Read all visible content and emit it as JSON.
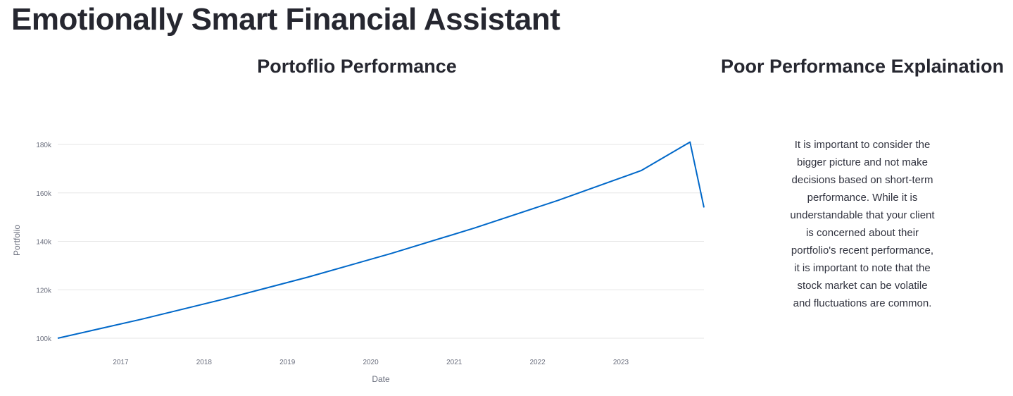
{
  "header": {
    "title": "Emotionally Smart Financial Assistant"
  },
  "chart_panel": {
    "title": "Portoflio Performance"
  },
  "explanation_panel": {
    "title": "Poor Performance Explaination",
    "text": "It is important to consider the bigger picture and not make decisions based on short-term performance. While it is understandable that your client is concerned about their portfolio's recent performance, it is important to note that the stock market can be volatile and fluctuations are common."
  },
  "colors": {
    "line": "#0068c9",
    "grid": "#e6e6e6",
    "axis_text": "#6b6f7e",
    "title_text": "#262730"
  },
  "chart_data": {
    "type": "line",
    "xlabel": "Date",
    "ylabel": "Portfolio",
    "x_ticks": [
      "2017",
      "2018",
      "2019",
      "2020",
      "2021",
      "2022",
      "2023"
    ],
    "y_ticks": [
      "100k",
      "120k",
      "140k",
      "160k",
      "180k"
    ],
    "xlim": [
      "2016-03-31",
      "2023-12-31"
    ],
    "ylim": [
      100000,
      180000
    ],
    "grid": true,
    "series": [
      {
        "name": "",
        "color": "#0068c9",
        "x": [
          "2016-03-31",
          "2017-03-31",
          "2018-03-31",
          "2019-03-31",
          "2020-03-31",
          "2021-03-31",
          "2022-03-31",
          "2023-03-31",
          "2023-10-31",
          "2023-12-31"
        ],
        "y": [
          100000,
          107800,
          116200,
          125200,
          135000,
          145500,
          156900,
          169200,
          181000,
          154000
        ]
      }
    ]
  }
}
